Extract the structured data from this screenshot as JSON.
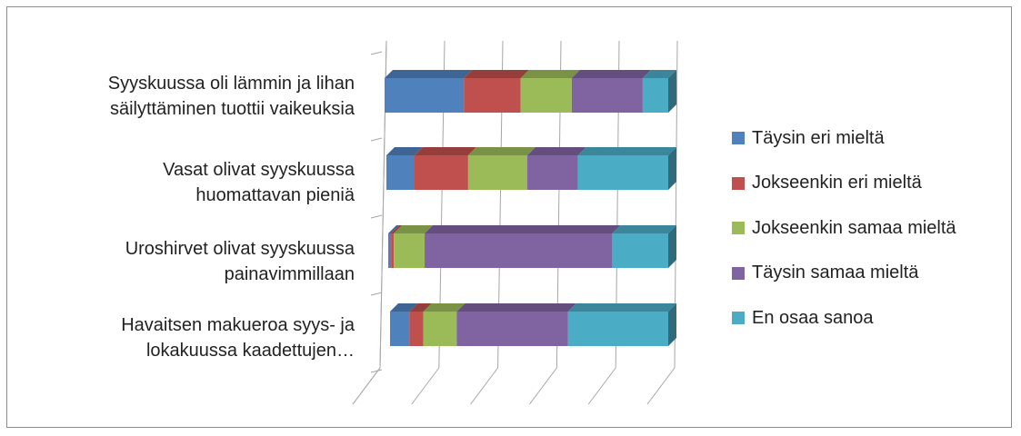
{
  "chart_data": {
    "type": "bar",
    "orientation": "horizontal",
    "stacked": "100%",
    "three_d": true,
    "categories": [
      "Syyskuussa oli lämmin ja lihan säilyttäminen tuottii vaikeuksia",
      "Vasat olivat syyskuussa huomattavan pieniä",
      "Uroshirvet olivat syyskuussa painavimmillaan",
      "Havaitsen makueroa syys- ja lokakuussa kaadettujen…"
    ],
    "category_lines": [
      [
        "Syyskuussa oli lämmin ja lihan",
        "säilyttäminen tuottii vaikeuksia"
      ],
      [
        "Vasat olivat syyskuussa",
        "huomattavan pieniä"
      ],
      [
        "Uroshirvet olivat syyskuussa",
        "painavimmillaan"
      ],
      [
        "Havaitsen makueroa syys- ja",
        "lokakuussa kaadettujen…"
      ]
    ],
    "series": [
      {
        "name": "Täysin eri mieltä",
        "color": "#4F81BD",
        "values": [
          28,
          10,
          1,
          7
        ]
      },
      {
        "name": "Jokseenkin eri mieltä",
        "color": "#C0504D",
        "values": [
          20,
          19,
          1,
          5
        ]
      },
      {
        "name": "Jokseenkin samaa mieltä",
        "color": "#9BBB59",
        "values": [
          18,
          21,
          11,
          12
        ]
      },
      {
        "name": "Täysin samaa mieltä",
        "color": "#8064A2",
        "values": [
          25,
          18,
          67,
          40
        ]
      },
      {
        "name": "En osaa sanoa",
        "color": "#4BACC6",
        "values": [
          9,
          32,
          20,
          36
        ]
      }
    ],
    "xlim": [
      0,
      100
    ],
    "grid": true,
    "legend_position": "right"
  }
}
